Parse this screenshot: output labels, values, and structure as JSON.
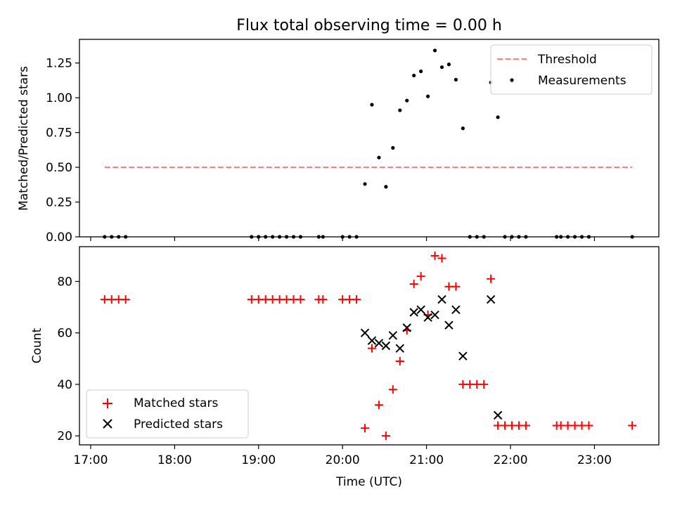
{
  "chart_data": [
    {
      "panel": "top",
      "type": "scatter",
      "title": "Flux total observing time = 0.00 h",
      "xlabel": "",
      "ylabel": "Matched/Predicted stars",
      "ylim": [
        0,
        1.42
      ],
      "yticks": [
        "0.00",
        "0.25",
        "0.50",
        "0.75",
        "1.00",
        "1.25"
      ],
      "ytick_values": [
        0,
        0.25,
        0.5,
        0.75,
        1.0,
        1.25
      ],
      "legend": {
        "placement": "top-right",
        "entries": [
          "Threshold",
          "Measurements"
        ]
      },
      "threshold": {
        "name": "Threshold",
        "y": 0.5,
        "x_start": "17:10",
        "x_end": "23:27",
        "color": "#ff7f7f",
        "style": "dashed"
      },
      "series": [
        {
          "name": "Measurements",
          "color": "#000000",
          "marker": "dot",
          "points": [
            [
              "17:10",
              0
            ],
            [
              "17:15",
              0
            ],
            [
              "17:20",
              0
            ],
            [
              "17:25",
              0
            ],
            [
              "18:55",
              0
            ],
            [
              "19:00",
              0
            ],
            [
              "19:05",
              0
            ],
            [
              "19:10",
              0
            ],
            [
              "19:15",
              0
            ],
            [
              "19:20",
              0
            ],
            [
              "19:25",
              0
            ],
            [
              "19:30",
              0
            ],
            [
              "19:43",
              0
            ],
            [
              "19:46",
              0
            ],
            [
              "20:00",
              0
            ],
            [
              "20:05",
              0
            ],
            [
              "20:10",
              0
            ],
            [
              "20:16",
              0.38
            ],
            [
              "20:21",
              0.95
            ],
            [
              "20:26",
              0.57
            ],
            [
              "20:31",
              0.36
            ],
            [
              "20:36",
              0.64
            ],
            [
              "20:41",
              0.91
            ],
            [
              "20:46",
              0.98
            ],
            [
              "20:51",
              1.16
            ],
            [
              "20:56",
              1.19
            ],
            [
              "21:01",
              1.01
            ],
            [
              "21:06",
              1.34
            ],
            [
              "21:11",
              1.22
            ],
            [
              "21:16",
              1.24
            ],
            [
              "21:21",
              1.13
            ],
            [
              "21:26",
              0.78
            ],
            [
              "21:31",
              0
            ],
            [
              "21:36",
              0
            ],
            [
              "21:41",
              0
            ],
            [
              "21:46",
              1.11
            ],
            [
              "21:51",
              0.86
            ],
            [
              "21:56",
              0
            ],
            [
              "22:01",
              0
            ],
            [
              "22:06",
              0
            ],
            [
              "22:11",
              0
            ],
            [
              "22:33",
              0
            ],
            [
              "22:36",
              0
            ],
            [
              "22:41",
              0
            ],
            [
              "22:46",
              0
            ],
            [
              "22:51",
              0
            ],
            [
              "22:56",
              0
            ],
            [
              "23:27",
              0
            ]
          ]
        }
      ]
    },
    {
      "panel": "bottom",
      "type": "scatter",
      "title": "",
      "xlabel": "Time (UTC)",
      "ylabel": "Count",
      "xlim": [
        "16:52",
        "23:46"
      ],
      "xticks": [
        "17:00",
        "18:00",
        "19:00",
        "20:00",
        "21:00",
        "22:00",
        "23:00"
      ],
      "ylim": [
        16.5,
        93.5
      ],
      "yticks": [
        "20",
        "40",
        "60",
        "80"
      ],
      "ytick_values": [
        20,
        40,
        60,
        80
      ],
      "legend": {
        "placement": "bottom-left",
        "entries": [
          "Matched stars",
          "Predicted stars"
        ]
      },
      "series": [
        {
          "name": "Matched stars",
          "color": "#ff0000",
          "marker": "plus",
          "points": [
            [
              "17:10",
              73
            ],
            [
              "17:15",
              73
            ],
            [
              "17:20",
              73
            ],
            [
              "17:25",
              73
            ],
            [
              "18:55",
              73
            ],
            [
              "19:00",
              73
            ],
            [
              "19:05",
              73
            ],
            [
              "19:10",
              73
            ],
            [
              "19:15",
              73
            ],
            [
              "19:20",
              73
            ],
            [
              "19:25",
              73
            ],
            [
              "19:30",
              73
            ],
            [
              "19:43",
              73
            ],
            [
              "19:46",
              73
            ],
            [
              "20:00",
              73
            ],
            [
              "20:05",
              73
            ],
            [
              "20:10",
              73
            ],
            [
              "20:16",
              23
            ],
            [
              "20:21",
              54
            ],
            [
              "20:26",
              32
            ],
            [
              "20:31",
              20
            ],
            [
              "20:36",
              38
            ],
            [
              "20:41",
              49
            ],
            [
              "20:46",
              61
            ],
            [
              "20:51",
              79
            ],
            [
              "20:56",
              82
            ],
            [
              "21:01",
              67
            ],
            [
              "21:06",
              90
            ],
            [
              "21:11",
              89
            ],
            [
              "21:16",
              78
            ],
            [
              "21:21",
              78
            ],
            [
              "21:26",
              40
            ],
            [
              "21:31",
              40
            ],
            [
              "21:36",
              40
            ],
            [
              "21:41",
              40
            ],
            [
              "21:46",
              81
            ],
            [
              "21:51",
              24
            ],
            [
              "21:56",
              24
            ],
            [
              "22:01",
              24
            ],
            [
              "22:06",
              24
            ],
            [
              "22:11",
              24
            ],
            [
              "22:33",
              24
            ],
            [
              "22:36",
              24
            ],
            [
              "22:41",
              24
            ],
            [
              "22:46",
              24
            ],
            [
              "22:51",
              24
            ],
            [
              "22:56",
              24
            ],
            [
              "23:27",
              24
            ]
          ]
        },
        {
          "name": "Predicted stars",
          "color": "#000000",
          "marker": "x",
          "points": [
            [
              "20:16",
              60
            ],
            [
              "20:21",
              57
            ],
            [
              "20:26",
              56
            ],
            [
              "20:31",
              55
            ],
            [
              "20:36",
              59
            ],
            [
              "20:41",
              54
            ],
            [
              "20:46",
              62
            ],
            [
              "20:51",
              68
            ],
            [
              "20:56",
              69
            ],
            [
              "21:01",
              66
            ],
            [
              "21:06",
              67
            ],
            [
              "21:11",
              73
            ],
            [
              "21:16",
              63
            ],
            [
              "21:21",
              69
            ],
            [
              "21:26",
              51
            ],
            [
              "21:46",
              73
            ],
            [
              "21:51",
              28
            ]
          ]
        }
      ]
    }
  ]
}
